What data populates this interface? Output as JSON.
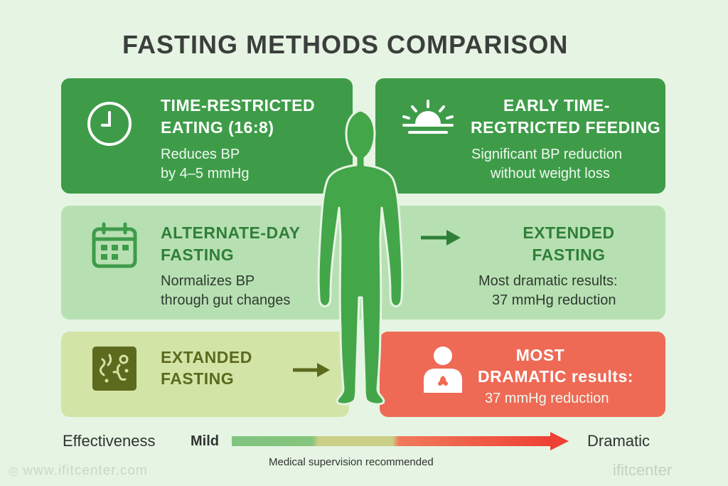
{
  "title": "FASTING METHODS COMPARISON",
  "colors": {
    "green_dark": "#3e9c49",
    "green_light": "#b7e0b2",
    "olive": "#d3e4a7",
    "coral": "#ee6a55",
    "background": "#e6f4e3",
    "figure": "#43a649"
  },
  "methods": [
    {
      "heading_line1": "TIME-RESTRICTED",
      "heading_line2": "EATING (16:8)",
      "body_line1": "Reduces BP",
      "body_line2": "by 4–5 mmHg",
      "icon": "clock-icon"
    },
    {
      "heading_line1": "EARLY TIME-",
      "heading_line2": "REGTRICTED FEEDING",
      "body_line1": "Significant BP reduction",
      "body_line2": "without weight loss",
      "icon": "sunrise-icon"
    },
    {
      "heading_line1": "ALTERNATE-DAY",
      "heading_line2": "FASTING",
      "body_line1": "Normalizes BP",
      "body_line2": "through gut changes",
      "icon": "calendar-icon"
    },
    {
      "heading_line1": "EXTENDED",
      "heading_line2": "FASTING",
      "body_line1": "Most dramatic results:",
      "body_line2": "37 mmHg reduction",
      "icon": "arrow-right-icon"
    },
    {
      "heading_line1": "EXTANDED",
      "heading_line2": "FASTING",
      "icon": "gut-microbiome-icon"
    },
    {
      "heading_line1": "MOST",
      "heading_line2": "DRAMATIC results:",
      "body_line1": "37 mmHg reduction",
      "icon": "doctor-icon"
    }
  ],
  "legend": {
    "label": "Effectiveness",
    "low": "Mild",
    "high": "Dramatic",
    "gradient": [
      "#7fc47f",
      "#c9cf86",
      "#f07a5c",
      "#ee4034"
    ]
  },
  "note": "Medical supervision recommended",
  "watermark_left": "www.ifitcenter.com",
  "watermark_right": "ifitcenter"
}
